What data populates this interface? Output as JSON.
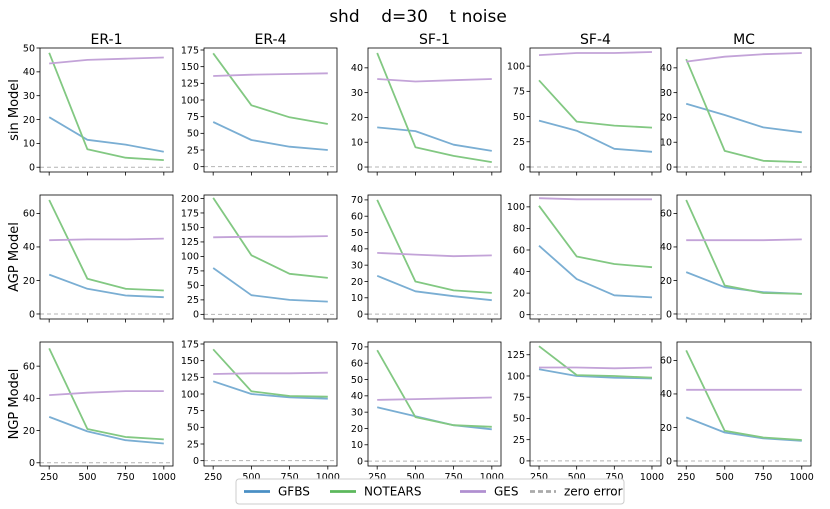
{
  "title": "shd    d=30    t noise",
  "x_ticks": [
    250,
    500,
    750,
    1000
  ],
  "columns": [
    "ER-1",
    "ER-4",
    "SF-1",
    "SF-4",
    "MC"
  ],
  "rows": [
    "sin Model",
    "AGP Model",
    "NGP Model"
  ],
  "series_styles": [
    {
      "key": "GFBS",
      "name": "GFBS",
      "color": "#7aaed3"
    },
    {
      "key": "NOTEARS",
      "name": "NOTEARS",
      "color": "#82c882"
    },
    {
      "key": "GES",
      "name": "GES",
      "color": "#c3a3d8"
    }
  ],
  "legend": {
    "placement": "bottom-center",
    "entries": [
      {
        "label": "GFBS",
        "color": "#4a8fc4",
        "style": "solid"
      },
      {
        "label": "NOTEARS",
        "color": "#5cb85c",
        "style": "solid"
      },
      {
        "label": "GES",
        "color": "#b08fd0",
        "style": "solid"
      },
      {
        "label": "zero error",
        "color": "#aaaaaa",
        "style": "dashed"
      }
    ]
  },
  "chart_data": [
    {
      "type": "line",
      "row": "sin Model",
      "column": "ER-1",
      "x": [
        250,
        500,
        750,
        1000
      ],
      "yticks": [
        0,
        10,
        20,
        30,
        40,
        50
      ],
      "ylim": [
        -2,
        50
      ],
      "series": [
        {
          "name": "GFBS",
          "values": [
            21,
            11.5,
            9.5,
            6.5
          ]
        },
        {
          "name": "NOTEARS",
          "values": [
            48,
            7.5,
            4,
            3
          ]
        },
        {
          "name": "GES",
          "values": [
            43.5,
            45,
            45.5,
            46
          ]
        }
      ]
    },
    {
      "type": "line",
      "row": "sin Model",
      "column": "ER-4",
      "x": [
        250,
        500,
        750,
        1000
      ],
      "yticks": [
        0,
        25,
        50,
        75,
        100,
        125,
        150,
        175
      ],
      "ylim": [
        -8,
        178
      ],
      "series": [
        {
          "name": "GFBS",
          "values": [
            67,
            40,
            30,
            25
          ]
        },
        {
          "name": "NOTEARS",
          "values": [
            170,
            92,
            74,
            64
          ]
        },
        {
          "name": "GES",
          "values": [
            136,
            138,
            139,
            140
          ]
        }
      ]
    },
    {
      "type": "line",
      "row": "sin Model",
      "column": "SF-1",
      "x": [
        250,
        500,
        750,
        1000
      ],
      "yticks": [
        0,
        10,
        20,
        30,
        40
      ],
      "ylim": [
        -2,
        48
      ],
      "series": [
        {
          "name": "GFBS",
          "values": [
            16,
            14.5,
            9,
            6.5
          ]
        },
        {
          "name": "NOTEARS",
          "values": [
            46,
            8,
            4.5,
            2
          ]
        },
        {
          "name": "GES",
          "values": [
            35.5,
            34.5,
            35,
            35.5
          ]
        }
      ]
    },
    {
      "type": "line",
      "row": "sin Model",
      "column": "SF-4",
      "x": [
        250,
        500,
        750,
        1000
      ],
      "yticks": [
        0,
        25,
        50,
        75,
        100
      ],
      "ylim": [
        -5,
        118
      ],
      "series": [
        {
          "name": "GFBS",
          "values": [
            46,
            36,
            18,
            15
          ]
        },
        {
          "name": "NOTEARS",
          "values": [
            86,
            45,
            41,
            39
          ]
        },
        {
          "name": "GES",
          "values": [
            111,
            113,
            113,
            114
          ]
        }
      ]
    },
    {
      "type": "line",
      "row": "sin Model",
      "column": "MC",
      "x": [
        250,
        500,
        750,
        1000
      ],
      "yticks": [
        0,
        10,
        20,
        30,
        40
      ],
      "ylim": [
        -2,
        48
      ],
      "series": [
        {
          "name": "GFBS",
          "values": [
            25.5,
            21,
            16,
            14
          ]
        },
        {
          "name": "NOTEARS",
          "values": [
            43.5,
            6.5,
            2.5,
            2
          ]
        },
        {
          "name": "GES",
          "values": [
            42.5,
            44.5,
            45.5,
            46
          ]
        }
      ]
    },
    {
      "type": "line",
      "row": "AGP Model",
      "column": "ER-1",
      "x": [
        250,
        500,
        750,
        1000
      ],
      "yticks": [
        0,
        20,
        40,
        60
      ],
      "ylim": [
        -3,
        71
      ],
      "series": [
        {
          "name": "GFBS",
          "values": [
            23.5,
            15,
            11,
            10
          ]
        },
        {
          "name": "NOTEARS",
          "values": [
            68,
            21,
            15,
            14
          ]
        },
        {
          "name": "GES",
          "values": [
            44,
            44.5,
            44.5,
            45
          ]
        }
      ]
    },
    {
      "type": "line",
      "row": "AGP Model",
      "column": "ER-4",
      "x": [
        250,
        500,
        750,
        1000
      ],
      "yticks": [
        0,
        25,
        50,
        75,
        100,
        125,
        150,
        175,
        200
      ],
      "ylim": [
        -8,
        206
      ],
      "series": [
        {
          "name": "GFBS",
          "values": [
            80,
            33,
            25,
            22
          ]
        },
        {
          "name": "NOTEARS",
          "values": [
            201,
            102,
            70,
            63
          ]
        },
        {
          "name": "GES",
          "values": [
            133,
            134,
            134,
            135
          ]
        }
      ]
    },
    {
      "type": "line",
      "row": "AGP Model",
      "column": "SF-1",
      "x": [
        250,
        500,
        750,
        1000
      ],
      "yticks": [
        0,
        10,
        20,
        30,
        40,
        50,
        60,
        70
      ],
      "ylim": [
        -3,
        73
      ],
      "series": [
        {
          "name": "GFBS",
          "values": [
            23.5,
            14,
            11,
            8.5
          ]
        },
        {
          "name": "NOTEARS",
          "values": [
            70,
            20,
            14.5,
            13
          ]
        },
        {
          "name": "GES",
          "values": [
            37.5,
            36.5,
            35.5,
            36
          ]
        }
      ]
    },
    {
      "type": "line",
      "row": "AGP Model",
      "column": "SF-4",
      "x": [
        250,
        500,
        750,
        1000
      ],
      "yticks": [
        0,
        20,
        40,
        60,
        80,
        100
      ],
      "ylim": [
        -4,
        111
      ],
      "series": [
        {
          "name": "GFBS",
          "values": [
            64,
            33,
            18,
            16
          ]
        },
        {
          "name": "NOTEARS",
          "values": [
            101,
            54,
            47,
            44
          ]
        },
        {
          "name": "GES",
          "values": [
            108,
            107,
            107,
            107
          ]
        }
      ]
    },
    {
      "type": "line",
      "row": "AGP Model",
      "column": "MC",
      "x": [
        250,
        500,
        750,
        1000
      ],
      "yticks": [
        0,
        20,
        40,
        60
      ],
      "ylim": [
        -3,
        71
      ],
      "series": [
        {
          "name": "GFBS",
          "values": [
            25,
            16,
            13,
            12
          ]
        },
        {
          "name": "NOTEARS",
          "values": [
            68,
            17,
            12.5,
            12
          ]
        },
        {
          "name": "GES",
          "values": [
            44,
            44,
            44,
            44.5
          ]
        }
      ]
    },
    {
      "type": "line",
      "row": "NGP Model",
      "column": "ER-1",
      "x": [
        250,
        500,
        750,
        1000
      ],
      "yticks": [
        0,
        20,
        40,
        60
      ],
      "ylim": [
        -2,
        75
      ],
      "series": [
        {
          "name": "GFBS",
          "values": [
            28.5,
            19.5,
            14,
            12
          ]
        },
        {
          "name": "NOTEARS",
          "values": [
            71,
            21,
            16,
            14.5
          ]
        },
        {
          "name": "GES",
          "values": [
            42,
            43.5,
            44.5,
            44.5
          ]
        }
      ]
    },
    {
      "type": "line",
      "row": "NGP Model",
      "column": "ER-4",
      "x": [
        250,
        500,
        750,
        1000
      ],
      "yticks": [
        0,
        25,
        50,
        75,
        100,
        125,
        150,
        175
      ],
      "ylim": [
        -8,
        178
      ],
      "series": [
        {
          "name": "GFBS",
          "values": [
            119,
            100,
            95,
            93
          ]
        },
        {
          "name": "NOTEARS",
          "values": [
            167,
            104,
            97,
            96
          ]
        },
        {
          "name": "GES",
          "values": [
            130,
            131,
            131,
            132
          ]
        }
      ]
    },
    {
      "type": "line",
      "row": "NGP Model",
      "column": "SF-1",
      "x": [
        250,
        500,
        750,
        1000
      ],
      "yticks": [
        0,
        10,
        20,
        30,
        40,
        50,
        60,
        70
      ],
      "ylim": [
        -3,
        73
      ],
      "series": [
        {
          "name": "GFBS",
          "values": [
            33,
            27.5,
            22,
            19.5
          ]
        },
        {
          "name": "NOTEARS",
          "values": [
            68,
            27,
            22,
            21
          ]
        },
        {
          "name": "GES",
          "values": [
            37.5,
            38,
            38.5,
            39
          ]
        }
      ]
    },
    {
      "type": "line",
      "row": "NGP Model",
      "column": "SF-4",
      "x": [
        250,
        500,
        750,
        1000
      ],
      "yticks": [
        0,
        25,
        50,
        75,
        100,
        125
      ],
      "ylim": [
        -6,
        140
      ],
      "series": [
        {
          "name": "GFBS",
          "values": [
            108,
            100,
            98,
            97
          ]
        },
        {
          "name": "NOTEARS",
          "values": [
            135,
            101,
            100,
            98
          ]
        },
        {
          "name": "GES",
          "values": [
            110,
            110,
            109,
            110
          ]
        }
      ]
    },
    {
      "type": "line",
      "row": "NGP Model",
      "column": "MC",
      "x": [
        250,
        500,
        750,
        1000
      ],
      "yticks": [
        0,
        20,
        40,
        60
      ],
      "ylim": [
        -3,
        71
      ],
      "series": [
        {
          "name": "GFBS",
          "values": [
            26,
            17,
            13.5,
            12
          ]
        },
        {
          "name": "NOTEARS",
          "values": [
            66,
            18,
            14,
            12.5
          ]
        },
        {
          "name": "GES",
          "values": [
            42.5,
            42.5,
            42.5,
            42.5
          ]
        }
      ]
    }
  ]
}
